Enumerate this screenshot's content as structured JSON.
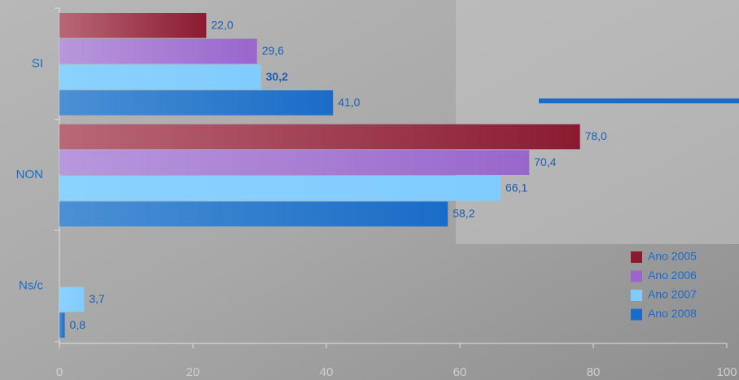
{
  "chart_data": {
    "type": "hbar",
    "categories": [
      "SI",
      "NON",
      "Ns/c"
    ],
    "series": [
      {
        "name": "Ano 2005",
        "color": "#8b1a30",
        "values": [
          22.0,
          78.0,
          null
        ],
        "value_labels": [
          "22,0",
          "78,0",
          null
        ]
      },
      {
        "name": "Ano 2006",
        "color": "#9966cc",
        "values": [
          29.6,
          70.4,
          null
        ],
        "value_labels": [
          "29,6",
          "70,4",
          null
        ]
      },
      {
        "name": "Ano 2007",
        "color": "#80ccff",
        "values": [
          30.2,
          66.1,
          3.7
        ],
        "value_labels": [
          "30,2",
          "66,1",
          "3,7"
        ]
      },
      {
        "name": "Ano 2008",
        "color": "#1a6cc8",
        "values": [
          41.0,
          58.2,
          0.8
        ],
        "value_labels": [
          "41,0",
          "58,2",
          "0,8"
        ]
      }
    ],
    "xlim": [
      0,
      100
    ],
    "xticks": [
      0,
      20,
      40,
      60,
      80,
      100
    ],
    "grid": false,
    "legend": "lower right"
  }
}
